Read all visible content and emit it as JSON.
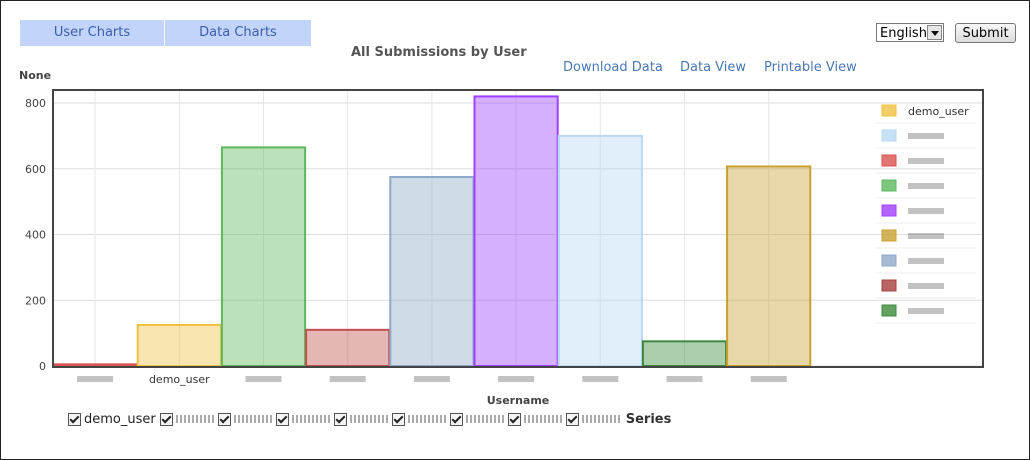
{
  "tabs": [
    {
      "label": "User Charts"
    },
    {
      "label": "Data Charts"
    }
  ],
  "language": {
    "selected": "English"
  },
  "submit_label": "Submit",
  "links": [
    {
      "label": "Download Data"
    },
    {
      "label": "Data View"
    },
    {
      "label": "Printable View"
    }
  ],
  "chart_data": {
    "type": "bar",
    "title": "All Submissions by User",
    "ylabel": "None",
    "xlabel": "Username",
    "ylim": [
      0,
      820
    ],
    "yticks": [
      0,
      200,
      400,
      600,
      800
    ],
    "grid": true,
    "legend_position": "right",
    "categories": [
      "",
      "demo_user",
      "",
      "",
      "",
      "",
      "",
      "",
      ""
    ],
    "values": [
      5,
      125,
      665,
      110,
      575,
      820,
      700,
      75,
      607
    ],
    "colors": [
      "#d9534f",
      "#f0c040",
      "#5cb85c",
      "#c0504d",
      "#8eaac8",
      "#a040ff",
      "#b8d8f4",
      "#3b8a3b",
      "#c8a030"
    ],
    "series": [
      {
        "name": "demo_user",
        "color": "#f0c040"
      },
      {
        "name": "",
        "color": "#b8d8f4"
      },
      {
        "name": "",
        "color": "#d9534f"
      },
      {
        "name": "",
        "color": "#5cb85c"
      },
      {
        "name": "",
        "color": "#a040ff"
      },
      {
        "name": "",
        "color": "#c8a030"
      },
      {
        "name": "",
        "color": "#8eaac8"
      },
      {
        "name": "",
        "color": "#a84040"
      },
      {
        "name": "",
        "color": "#3b8a3b"
      }
    ]
  },
  "series_toggle": {
    "items": [
      {
        "label": "demo_user"
      },
      {
        "label": ""
      },
      {
        "label": ""
      },
      {
        "label": ""
      },
      {
        "label": ""
      },
      {
        "label": ""
      },
      {
        "label": ""
      },
      {
        "label": ""
      },
      {
        "label": ""
      }
    ],
    "title": "Series"
  }
}
